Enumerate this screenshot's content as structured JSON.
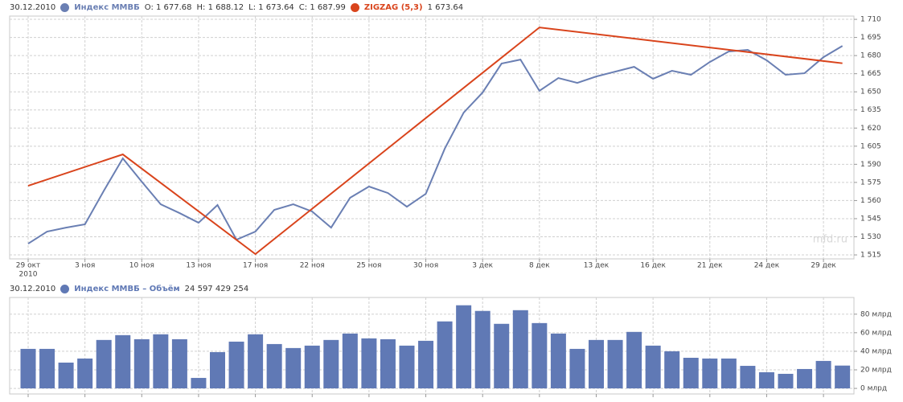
{
  "chart_data": [
    {
      "type": "line",
      "date": "30.12.2010",
      "ohlc": [
        "O: 1 677.68",
        "H: 1 688.12",
        "L: 1 673.64",
        "C: 1 687.99"
      ],
      "categories": [
        "29 окт",
        null,
        null,
        "3 ноя",
        null,
        null,
        "10 ноя",
        null,
        null,
        "13 ноя",
        null,
        null,
        "17 ноя",
        null,
        null,
        "22 ноя",
        null,
        null,
        "25 ноя",
        null,
        null,
        "30 ноя",
        null,
        null,
        "3 дек",
        null,
        null,
        "8 дек",
        null,
        null,
        "13 дек",
        null,
        null,
        "16 дек",
        null,
        null,
        "21 дек",
        null,
        null,
        "24 дек",
        null,
        null,
        "29 дек",
        null
      ],
      "year_label": "2010",
      "series": [
        {
          "name": "Индекс ММВБ",
          "color": "#6a7fb3",
          "values": [
            1524.3,
            1534.3,
            1537.6,
            1540.3,
            1568.2,
            1594.9,
            1575.6,
            1556.9,
            1549.6,
            1541.6,
            1556.3,
            1527.6,
            1534.3,
            1552.3,
            1556.9,
            1550.9,
            1537.6,
            1562.3,
            1571.6,
            1566.2,
            1554.9,
            1565.6,
            1602.9,
            1632.8,
            1649.4,
            1673.4,
            1676.7,
            1650.8,
            1661.4,
            1657.4,
            1662.7,
            1666.7,
            1670.7,
            1660.8,
            1667.4,
            1664.1,
            1674.7,
            1683.4,
            1684.7,
            1676.1,
            1664.1,
            1665.4,
            1678.7,
            1687.99
          ]
        }
      ],
      "zigzag": {
        "name": "ZIGZAG (5,3)",
        "color": "#d9441c",
        "x": [
          0,
          5,
          12,
          27,
          43
        ],
        "values": [
          1572.2,
          1598.2,
          1515.7,
          1703.3,
          1673.64
        ],
        "value_label": "1 673.64"
      },
      "ylim": [
        1511.7,
        1712.7
      ],
      "yticks": [
        {
          "value": 1515,
          "label": "1 515"
        },
        {
          "value": 1530,
          "label": "1 530"
        },
        {
          "value": 1545,
          "label": "1 545"
        },
        {
          "value": 1560,
          "label": "1 560"
        },
        {
          "value": 1575,
          "label": "1 575"
        },
        {
          "value": 1590,
          "label": "1 590"
        },
        {
          "value": 1605,
          "label": "1 605"
        },
        {
          "value": 1620,
          "label": "1 620"
        },
        {
          "value": 1635,
          "label": "1 635"
        },
        {
          "value": 1650,
          "label": "1 650"
        },
        {
          "value": 1665,
          "label": "1 665"
        },
        {
          "value": 1680,
          "label": "1 680"
        },
        {
          "value": 1695,
          "label": "1 695"
        },
        {
          "value": 1710,
          "label": "1 710"
        }
      ],
      "grid": true,
      "watermark": "mfd.ru"
    },
    {
      "type": "bar",
      "date": "30.12.2010",
      "name": "Индекс ММВБ – Объём",
      "value_label": "24 597 429 254",
      "color": "#6079b5",
      "values": [
        42.6,
        42.6,
        27.8,
        32.2,
        52.2,
        57.4,
        53.0,
        58.3,
        53.0,
        11.3,
        39.1,
        50.4,
        58.3,
        47.8,
        43.5,
        46.1,
        52.2,
        59.1,
        53.9,
        53.0,
        46.1,
        51.3,
        72.2,
        89.6,
        83.5,
        69.6,
        84.3,
        70.4,
        59.1,
        42.6,
        52.2,
        52.2,
        60.9,
        46.1,
        40.0,
        33.0,
        32.2,
        32.2,
        24.3,
        17.4,
        15.7,
        20.9,
        29.6,
        24.597429254
      ],
      "ylim": [
        -6,
        98
      ],
      "yticks": [
        {
          "value": 0,
          "label": "0 млрд"
        },
        {
          "value": 20,
          "label": "20 млрд"
        },
        {
          "value": 40,
          "label": "40 млрд"
        },
        {
          "value": 60,
          "label": "60 млрд"
        },
        {
          "value": 80,
          "label": "80 млрд"
        }
      ],
      "grid": true
    }
  ]
}
